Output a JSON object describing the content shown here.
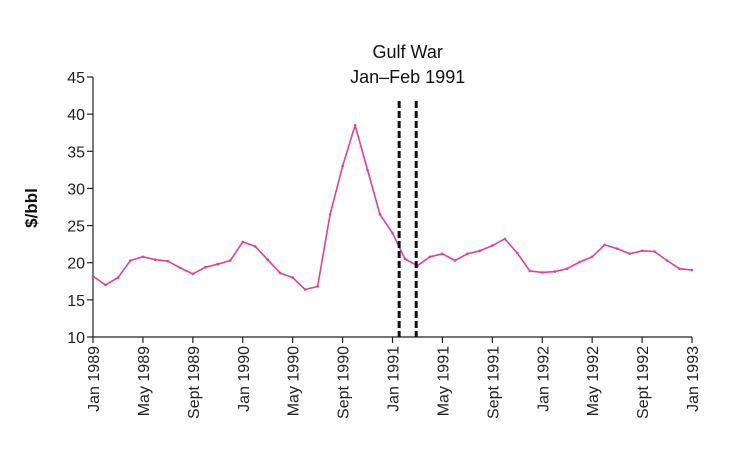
{
  "chart_data": {
    "type": "line",
    "title": "",
    "xlabel": "",
    "ylabel": "$/bbl",
    "ylim": [
      10,
      45
    ],
    "yticks": [
      10,
      15,
      20,
      25,
      30,
      35,
      40,
      45
    ],
    "xlim": [
      "1989-01",
      "1993-01"
    ],
    "x_ticks": [
      {
        "label": "Jan 1989",
        "date": "1989-01"
      },
      {
        "label": "May 1989",
        "date": "1989-05"
      },
      {
        "label": "Sept 1989",
        "date": "1989-09"
      },
      {
        "label": "Jan 1990",
        "date": "1990-01"
      },
      {
        "label": "May 1990",
        "date": "1990-05"
      },
      {
        "label": "Sept 1990",
        "date": "1990-09"
      },
      {
        "label": "Jan 1991",
        "date": "1991-01"
      },
      {
        "label": "May 1991",
        "date": "1991-05"
      },
      {
        "label": "Sept 1991",
        "date": "1991-09"
      },
      {
        "label": "Jan 1992",
        "date": "1992-01"
      },
      {
        "label": "May 1992",
        "date": "1992-05"
      },
      {
        "label": "Sept 1992",
        "date": "1992-09"
      },
      {
        "label": "Jan 1993",
        "date": "1993-01"
      }
    ],
    "grid": false,
    "legend": "none",
    "series": [
      {
        "color": "#e0409a",
        "points": [
          [
            "1989-01",
            18.2
          ],
          [
            "1989-02",
            17.0
          ],
          [
            "1989-03",
            18.0
          ],
          [
            "1989-04",
            20.3
          ],
          [
            "1989-05",
            20.8
          ],
          [
            "1989-06",
            20.4
          ],
          [
            "1989-07",
            20.2
          ],
          [
            "1989-08",
            19.3
          ],
          [
            "1989-09",
            18.5
          ],
          [
            "1989-10",
            19.4
          ],
          [
            "1989-11",
            19.8
          ],
          [
            "1989-12",
            20.3
          ],
          [
            "1990-01",
            22.8
          ],
          [
            "1990-02",
            22.2
          ],
          [
            "1990-03",
            20.4
          ],
          [
            "1990-04",
            18.6
          ],
          [
            "1990-05",
            18.0
          ],
          [
            "1990-06",
            16.4
          ],
          [
            "1990-07",
            16.8
          ],
          [
            "1990-08",
            26.5
          ],
          [
            "1990-09",
            33.0
          ],
          [
            "1990-10",
            38.5
          ],
          [
            "1990-11",
            32.5
          ],
          [
            "1990-12",
            26.5
          ],
          [
            "1991-01",
            24.0
          ],
          [
            "1991-02",
            20.5
          ],
          [
            "1991-03",
            19.6
          ],
          [
            "1991-04",
            20.8
          ],
          [
            "1991-05",
            21.2
          ],
          [
            "1991-06",
            20.3
          ],
          [
            "1991-07",
            21.2
          ],
          [
            "1991-08",
            21.6
          ],
          [
            "1991-09",
            22.3
          ],
          [
            "1991-10",
            23.2
          ],
          [
            "1991-11",
            21.3
          ],
          [
            "1991-12",
            18.9
          ],
          [
            "1992-01",
            18.7
          ],
          [
            "1992-02",
            18.8
          ],
          [
            "1992-03",
            19.2
          ],
          [
            "1992-04",
            20.1
          ],
          [
            "1992-05",
            20.8
          ],
          [
            "1992-06",
            22.4
          ],
          [
            "1992-07",
            21.9
          ],
          [
            "1992-08",
            21.2
          ],
          [
            "1992-09",
            21.6
          ],
          [
            "1992-10",
            21.5
          ],
          [
            "1992-11",
            20.3
          ],
          [
            "1992-12",
            19.2
          ],
          [
            "1993-01",
            19.0
          ]
        ]
      }
    ],
    "annotations": [
      {
        "text_lines": [
          "Gulf War",
          "Jan–Feb 1991"
        ],
        "markers": [
          {
            "date": "1991-01-17",
            "style": "dashed"
          },
          {
            "date": "1991-02-28",
            "style": "dashed"
          }
        ]
      }
    ]
  }
}
